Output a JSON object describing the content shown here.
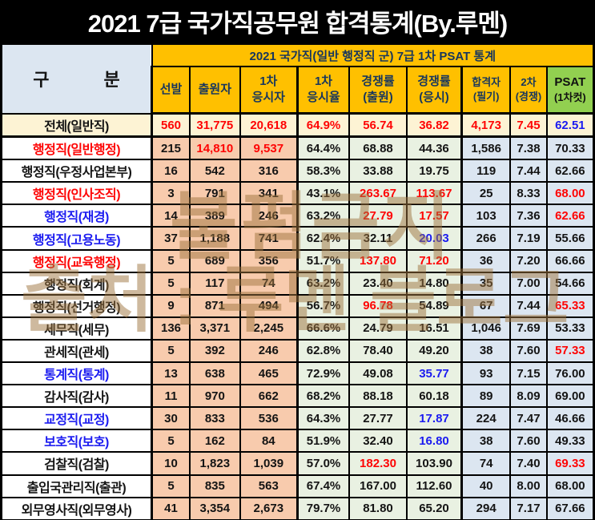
{
  "title": "2021 7급 국가직공무원 합격통계(By.루멘)",
  "watermark": {
    "line1": "불펌금지",
    "line2": "출처 : 루멘 블로그"
  },
  "table": {
    "merged_header": "2021 국가직(일반 행정직 군) 7급 1차 PSAT 통계",
    "corner_left": "구",
    "corner_right": "분",
    "columns": [
      {
        "line1": "선발",
        "line2": ""
      },
      {
        "line1": "출원자",
        "line2": ""
      },
      {
        "line1": "1차",
        "line2": "응시자"
      },
      {
        "line1": "1차",
        "line2": "응시율"
      },
      {
        "line1": "경쟁률",
        "line2": "(출원)"
      },
      {
        "line1": "경쟁률",
        "line2": "(응시)"
      },
      {
        "line1": "합격자",
        "line2": "(필기)"
      },
      {
        "line1": "2차",
        "line2": "(경쟁)"
      },
      {
        "line1": "PSAT",
        "line2": "(1차컷)"
      }
    ],
    "rows": [
      {
        "label": "전체(일반직)",
        "label_color": "k",
        "total": true,
        "values": [
          "560",
          "31,775",
          "20,618",
          "64.9%",
          "56.74",
          "36.82",
          "4,173",
          "7.45",
          "62.51"
        ],
        "value_colors": [
          "r",
          "r",
          "r",
          "r",
          "r",
          "r",
          "r",
          "r",
          "b"
        ]
      },
      {
        "label": "행정직(일반행정)",
        "label_color": "r",
        "values": [
          "215",
          "14,810",
          "9,537",
          "64.4%",
          "68.88",
          "44.36",
          "1,586",
          "7.38",
          "70.33"
        ],
        "value_colors": [
          "k",
          "r",
          "r",
          "k",
          "k",
          "k",
          "k",
          "k",
          "k"
        ]
      },
      {
        "label": "행정직(우정사업본부)",
        "label_color": "k",
        "values": [
          "16",
          "542",
          "316",
          "58.3%",
          "33.88",
          "19.75",
          "119",
          "7.44",
          "62.66"
        ],
        "value_colors": [
          "k",
          "k",
          "k",
          "k",
          "k",
          "k",
          "k",
          "k",
          "k"
        ]
      },
      {
        "label": "행정직(인사조직)",
        "label_color": "r",
        "values": [
          "3",
          "791",
          "341",
          "43.1%",
          "263.67",
          "113.67",
          "25",
          "8.33",
          "68.00"
        ],
        "value_colors": [
          "k",
          "k",
          "k",
          "k",
          "r",
          "r",
          "k",
          "k",
          "r"
        ]
      },
      {
        "label": "행정직(재경)",
        "label_color": "b",
        "values": [
          "14",
          "389",
          "246",
          "63.2%",
          "27.79",
          "17.57",
          "103",
          "7.36",
          "62.66"
        ],
        "value_colors": [
          "k",
          "k",
          "k",
          "k",
          "r",
          "r",
          "k",
          "k",
          "r"
        ]
      },
      {
        "label": "행정직(고용노동)",
        "label_color": "b",
        "values": [
          "37",
          "1,188",
          "741",
          "62.4%",
          "32.11",
          "20.03",
          "266",
          "7.19",
          "55.66"
        ],
        "value_colors": [
          "k",
          "k",
          "k",
          "k",
          "k",
          "b",
          "k",
          "k",
          "k"
        ]
      },
      {
        "label": "행정직(교육행정)",
        "label_color": "r",
        "values": [
          "5",
          "689",
          "356",
          "51.7%",
          "137.80",
          "71.20",
          "36",
          "7.20",
          "66.66"
        ],
        "value_colors": [
          "k",
          "k",
          "k",
          "k",
          "r",
          "r",
          "k",
          "k",
          "k"
        ]
      },
      {
        "label": "행정직(회계)",
        "label_color": "k",
        "values": [
          "5",
          "117",
          "74",
          "63.2%",
          "23.40",
          "14.80",
          "35",
          "7.00",
          "54.66"
        ],
        "value_colors": [
          "k",
          "k",
          "k",
          "k",
          "k",
          "k",
          "k",
          "k",
          "k"
        ]
      },
      {
        "label": "행정직(선거행정)",
        "label_color": "k",
        "values": [
          "9",
          "871",
          "494",
          "56.7%",
          "96.78",
          "54.89",
          "67",
          "7.44",
          "65.33"
        ],
        "value_colors": [
          "k",
          "k",
          "k",
          "k",
          "r",
          "k",
          "k",
          "k",
          "r"
        ]
      },
      {
        "label": "세무직(세무)",
        "label_color": "k",
        "values": [
          "136",
          "3,371",
          "2,245",
          "66.6%",
          "24.79",
          "16.51",
          "1,046",
          "7.69",
          "53.33"
        ],
        "value_colors": [
          "k",
          "k",
          "k",
          "k",
          "k",
          "k",
          "k",
          "k",
          "k"
        ]
      },
      {
        "label": "관세직(관세)",
        "label_color": "k",
        "values": [
          "5",
          "392",
          "246",
          "62.8%",
          "78.40",
          "49.20",
          "38",
          "7.60",
          "57.33"
        ],
        "value_colors": [
          "k",
          "k",
          "k",
          "k",
          "k",
          "k",
          "k",
          "k",
          "r"
        ]
      },
      {
        "label": "통계직(통계)",
        "label_color": "b",
        "values": [
          "13",
          "638",
          "465",
          "72.9%",
          "49.08",
          "35.77",
          "93",
          "7.15",
          "76.00"
        ],
        "value_colors": [
          "k",
          "k",
          "k",
          "k",
          "k",
          "b",
          "k",
          "k",
          "k"
        ]
      },
      {
        "label": "감사직(감사)",
        "label_color": "k",
        "values": [
          "11",
          "970",
          "662",
          "68.2%",
          "88.18",
          "60.18",
          "89",
          "8.09",
          "69.00"
        ],
        "value_colors": [
          "k",
          "k",
          "k",
          "k",
          "k",
          "k",
          "k",
          "k",
          "k"
        ]
      },
      {
        "label": "교정직(교정)",
        "label_color": "b",
        "values": [
          "30",
          "833",
          "536",
          "64.3%",
          "27.77",
          "17.87",
          "224",
          "7.47",
          "46.66"
        ],
        "value_colors": [
          "k",
          "k",
          "k",
          "k",
          "k",
          "b",
          "k",
          "k",
          "k"
        ]
      },
      {
        "label": "보호직(보호)",
        "label_color": "b",
        "values": [
          "5",
          "162",
          "84",
          "51.9%",
          "32.40",
          "16.80",
          "38",
          "7.60",
          "49.33"
        ],
        "value_colors": [
          "k",
          "k",
          "k",
          "k",
          "k",
          "b",
          "k",
          "k",
          "k"
        ]
      },
      {
        "label": "검찰직(검찰)",
        "label_color": "k",
        "values": [
          "10",
          "1,823",
          "1,039",
          "57.0%",
          "182.30",
          "103.90",
          "74",
          "7.40",
          "69.33"
        ],
        "value_colors": [
          "k",
          "k",
          "k",
          "k",
          "r",
          "k",
          "k",
          "k",
          "r"
        ]
      },
      {
        "label": "출입국관리직(출관)",
        "label_color": "k",
        "values": [
          "5",
          "835",
          "563",
          "67.4%",
          "167.00",
          "112.60",
          "40",
          "8.00",
          "68.00"
        ],
        "value_colors": [
          "k",
          "k",
          "k",
          "k",
          "k",
          "k",
          "k",
          "k",
          "k"
        ]
      },
      {
        "label": "외무영사직(외무영사)",
        "label_color": "k",
        "values": [
          "41",
          "3,354",
          "2,673",
          "79.7%",
          "81.80",
          "65.20",
          "294",
          "7.17",
          "67.66"
        ],
        "value_colors": [
          "k",
          "k",
          "k",
          "k",
          "k",
          "k",
          "k",
          "k",
          "k"
        ]
      }
    ]
  },
  "colors": {
    "text": {
      "k": "#141414",
      "r": "#fe0404",
      "b": "#1b1bf0"
    },
    "theme": {
      "banner_bg": "#000000",
      "banner_text": "#ffffff",
      "orange": "#ffc000",
      "header_text": "#17365d",
      "green": "#92d050",
      "corner_bg": "#dce6f1",
      "peach": "#f8cbad",
      "lightgreen": "#e9f1e2",
      "lightblue": "#dce6f1",
      "cream": "#fdf3d4",
      "label_bg": "#ffffff",
      "border": "#000000",
      "watermark": "rgba(158,116,61,0.5)"
    }
  }
}
